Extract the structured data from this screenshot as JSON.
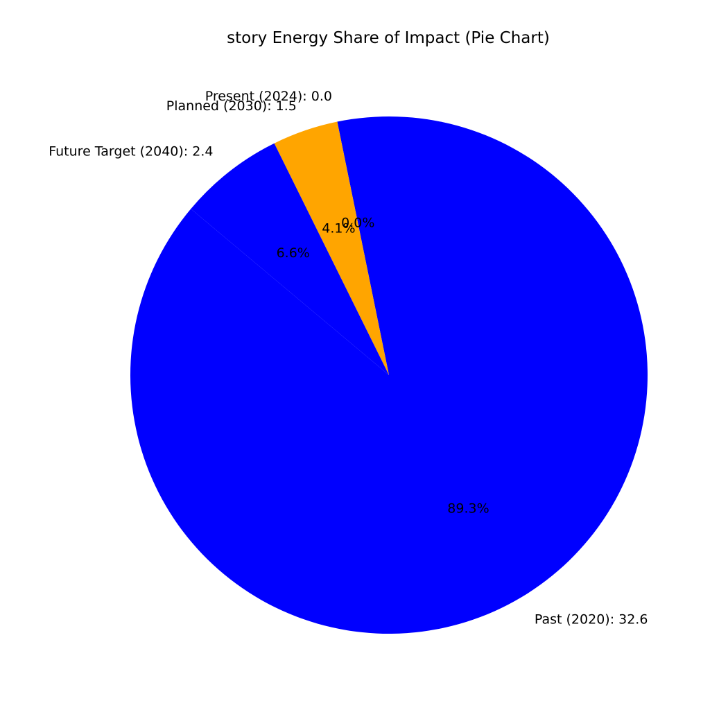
{
  "chart_data": {
    "type": "pie",
    "title": "story Energy Share of Impact (Pie Chart)",
    "slices": [
      {
        "category": "Past (2020)",
        "value": 32.6,
        "label": "Past (2020): 32.6",
        "pct_label": "89.3%",
        "color": "#0000ff"
      },
      {
        "category": "Present (2024)",
        "value": 0.0,
        "label": "Present (2024): 0.0",
        "pct_label": "0.0%",
        "color": "#008000"
      },
      {
        "category": "Planned (2030)",
        "value": 1.5,
        "label": "Planned (2030): 1.5",
        "pct_label": "4.1%",
        "color": "#ffa500"
      },
      {
        "category": "Future Target (2040)",
        "value": 2.4,
        "label": "Future Target (2040): 2.4",
        "pct_label": "6.6%",
        "color": "#0000ff"
      }
    ],
    "start_angle_deg": 140,
    "direction": "counterclockwise",
    "legend": "none"
  }
}
